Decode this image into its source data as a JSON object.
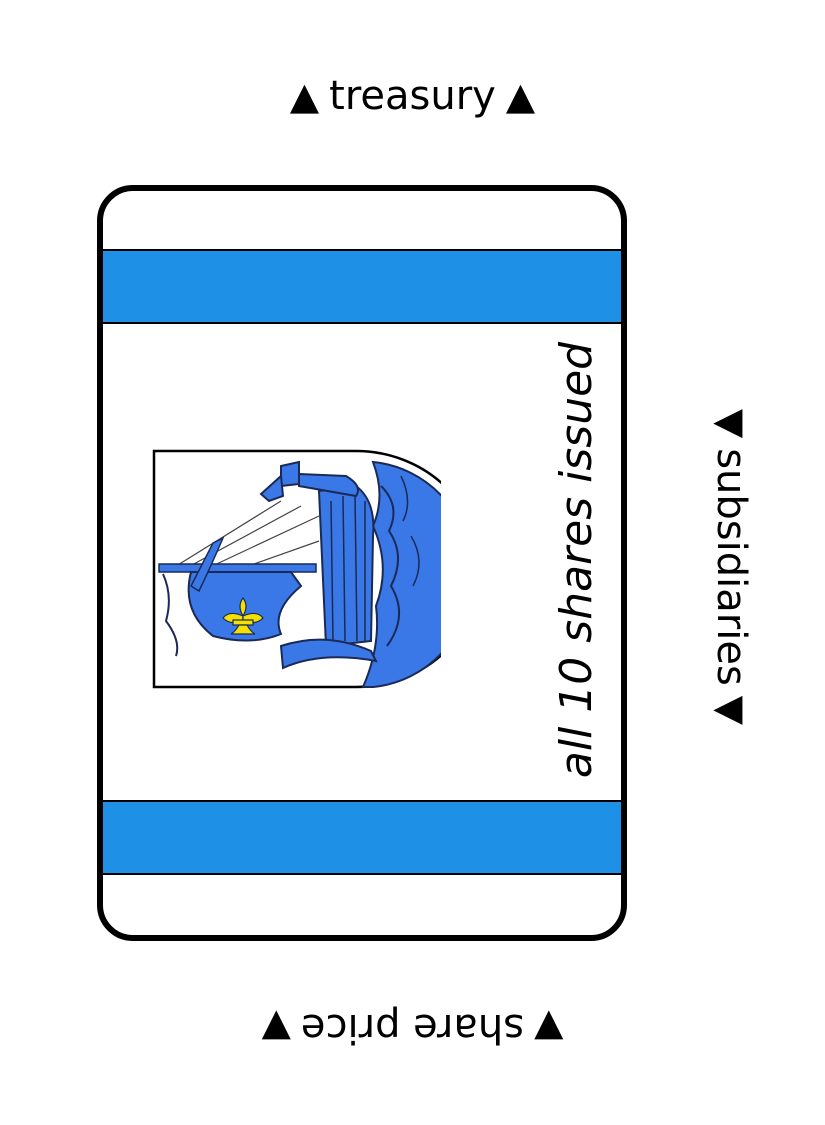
{
  "colors": {
    "stripe": "#1e90e6",
    "logo_blue": "#3b78e7",
    "fleur": "#f5e000",
    "border": "#000000"
  },
  "edges": {
    "top": {
      "arrow_left": "▲",
      "word": "treasury",
      "arrow_right": "▲"
    },
    "right": {
      "arrow_left": "▼",
      "word": "subsidiaries",
      "arrow_right": "▼"
    },
    "bottom": {
      "arrow_left": "▼",
      "word": "share price",
      "arrow_right": "▼"
    }
  },
  "card": {
    "status_text": "all 10 shares issued",
    "logo_icon": "ship-harbor-emblem-icon"
  }
}
